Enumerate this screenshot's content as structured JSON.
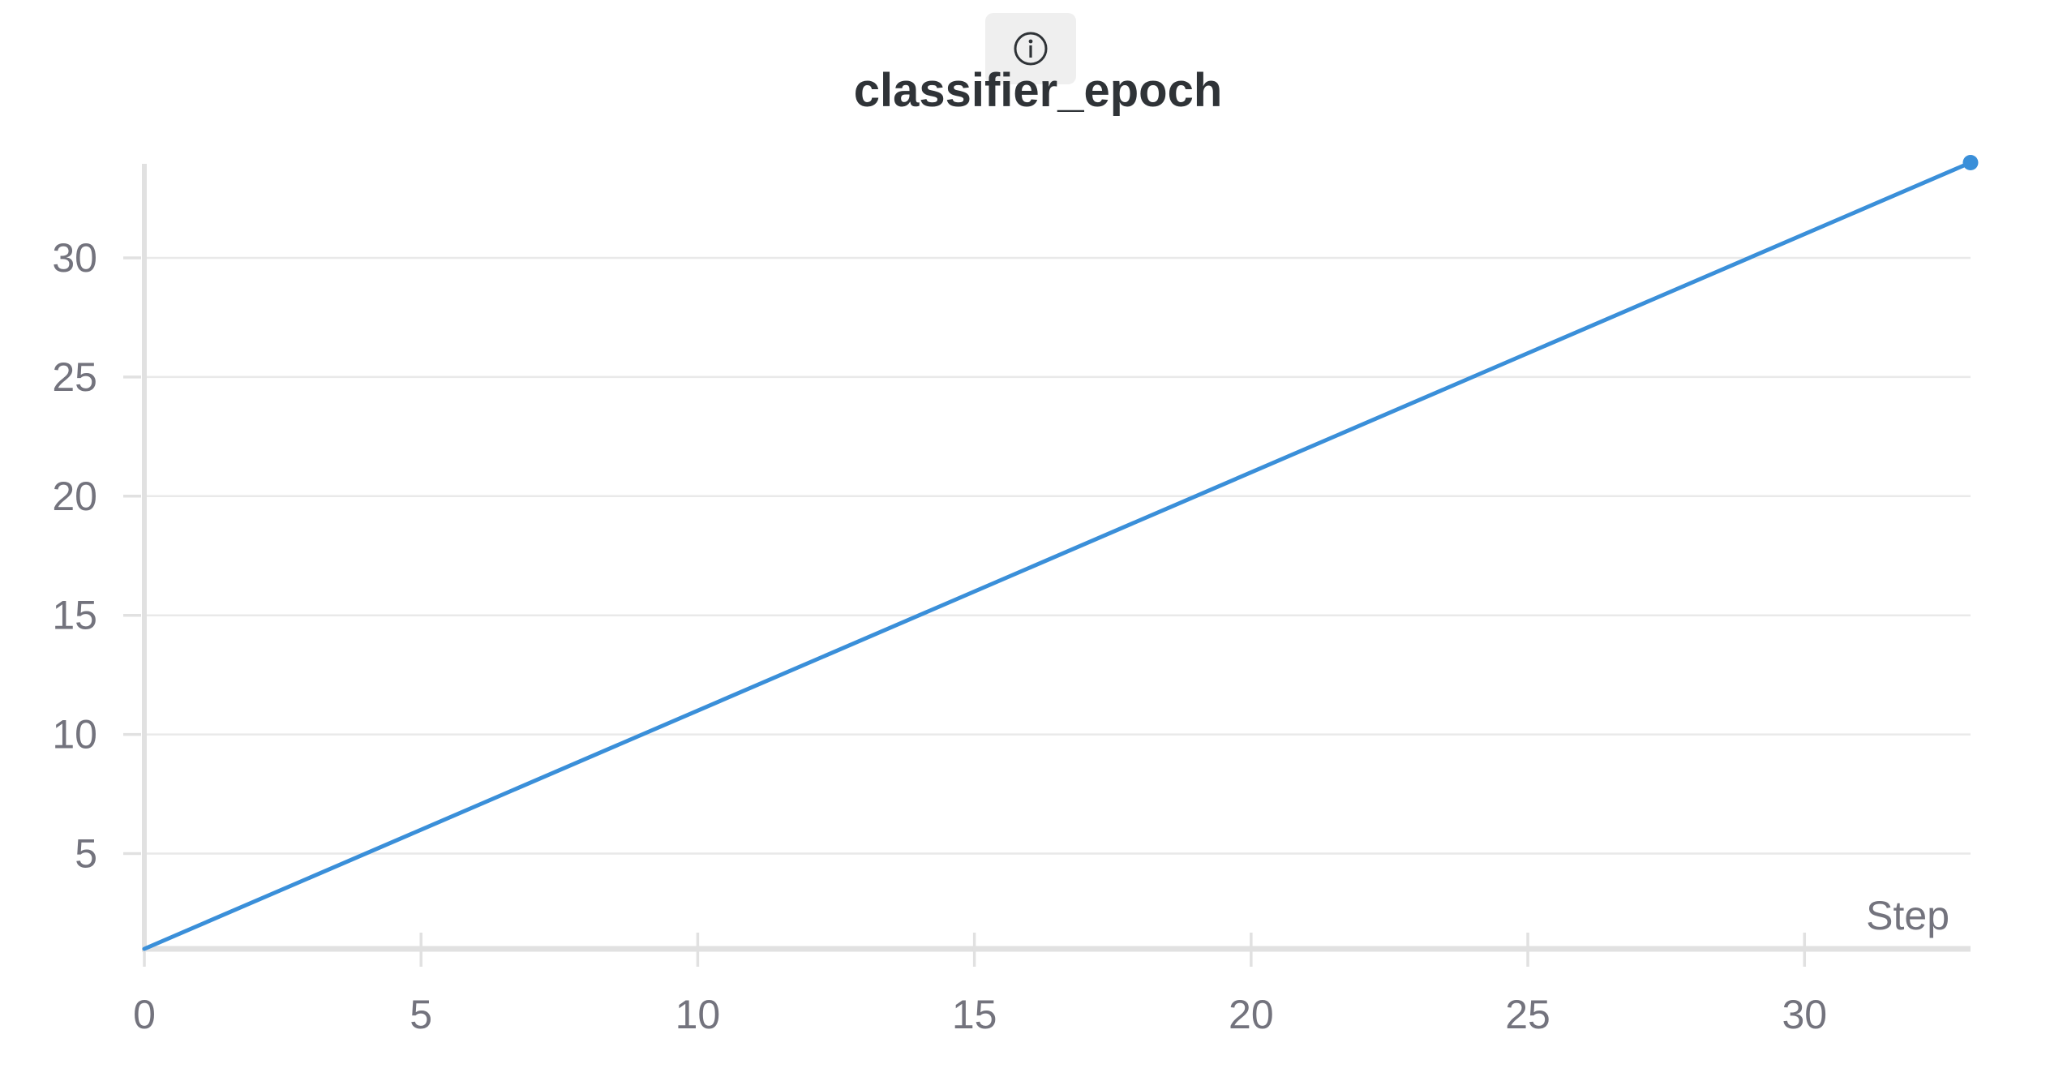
{
  "info_icon": "info-circle-icon",
  "chart_data": {
    "type": "line",
    "title": "classifier_epoch",
    "xlabel": "Step",
    "ylabel": "",
    "xlim": [
      0,
      33
    ],
    "ylim": [
      1,
      34
    ],
    "xticks": [
      0,
      5,
      10,
      15,
      20,
      25,
      30
    ],
    "yticks": [
      5,
      10,
      15,
      20,
      25,
      30
    ],
    "grid": true,
    "series": [
      {
        "color": "#3a8fd9",
        "x": [
          0,
          33
        ],
        "y": [
          1,
          34
        ],
        "end_marker": true
      }
    ]
  }
}
